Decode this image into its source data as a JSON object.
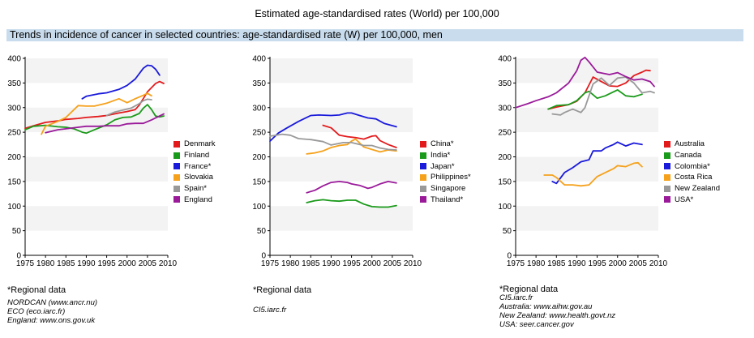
{
  "page_title": "Estimated age-standardised rates (World) per 100,000",
  "banner": "Trends in incidence of cancer in selected countries: age-standardised rate (W) per 100,000, men",
  "chart_data": [
    {
      "type": "line",
      "xlim": [
        1975,
        2010
      ],
      "ylim": [
        0,
        400
      ],
      "xticks": [
        "1975",
        "1980",
        "1985",
        "1990",
        "1995",
        "2000",
        "2005",
        "2010"
      ],
      "yticks": [
        "0",
        "50",
        "100",
        "150",
        "200",
        "250",
        "300",
        "350",
        "400"
      ],
      "grid": false,
      "legend_position": "right",
      "series": [
        {
          "name": "Denmark",
          "color": "#e31a1c",
          "x": [
            1975,
            1977,
            1980,
            1983,
            1985,
            1988,
            1990,
            1993,
            1995,
            1998,
            2000,
            2002,
            2003,
            2005,
            2007,
            2008,
            2009
          ],
          "y": [
            258,
            263,
            270,
            273,
            276,
            278,
            280,
            282,
            284,
            289,
            292,
            296,
            305,
            332,
            349,
            353,
            349
          ]
        },
        {
          "name": "Finland",
          "color": "#1a9a1a",
          "x": [
            1975,
            1977,
            1980,
            1983,
            1985,
            1987,
            1989,
            1990,
            1992,
            1995,
            1997,
            1999,
            2001,
            2003,
            2004,
            2005,
            2006,
            2007,
            2008,
            2009
          ],
          "y": [
            255,
            262,
            264,
            261,
            260,
            257,
            250,
            248,
            255,
            265,
            275,
            280,
            281,
            288,
            299,
            306,
            296,
            283,
            281,
            283
          ]
        },
        {
          "name": "France*",
          "color": "#1a1adb",
          "x": [
            1989,
            1990,
            1993,
            1995,
            1998,
            2000,
            2002,
            2004,
            2005,
            2006,
            2007,
            2008
          ],
          "y": [
            318,
            323,
            328,
            330,
            337,
            345,
            358,
            380,
            386,
            385,
            378,
            366
          ]
        },
        {
          "name": "Slovakia",
          "color": "#f5a11b",
          "x": [
            1979,
            1980,
            1983,
            1985,
            1988,
            1990,
            1992,
            1995,
            1998,
            2000,
            2002,
            2004,
            2005,
            2006
          ],
          "y": [
            246,
            262,
            272,
            280,
            304,
            303,
            303,
            309,
            318,
            310,
            318,
            325,
            329,
            324
          ]
        },
        {
          "name": "Spain*",
          "color": "#999999",
          "x": [
            1995,
            1997,
            1999,
            2001,
            2003,
            2004,
            2005,
            2006
          ],
          "y": [
            284,
            291,
            295,
            299,
            308,
            314,
            317,
            316
          ]
        },
        {
          "name": "England",
          "color": "#9a1a9a",
          "x": [
            1980,
            1983,
            1985,
            1988,
            1990,
            1993,
            1995,
            1998,
            2000,
            2002,
            2004,
            2006,
            2008,
            2009
          ],
          "y": [
            249,
            255,
            257,
            260,
            262,
            262,
            263,
            263,
            267,
            268,
            268,
            275,
            283,
            287
          ]
        }
      ]
    },
    {
      "type": "line",
      "xlim": [
        1975,
        2010
      ],
      "ylim": [
        0,
        400
      ],
      "xticks": [
        "1975",
        "1980",
        "1985",
        "1990",
        "1995",
        "2000",
        "2005",
        "2010"
      ],
      "yticks": [
        "0",
        "50",
        "100",
        "150",
        "200",
        "250",
        "300",
        "350",
        "400"
      ],
      "grid": false,
      "legend_position": "right",
      "series": [
        {
          "name": "China*",
          "color": "#e31a1c",
          "x": [
            1988,
            1990,
            1992,
            1994,
            1996,
            1998,
            2000,
            2001,
            2002,
            2004,
            2006
          ],
          "y": [
            264,
            259,
            244,
            241,
            239,
            236,
            242,
            243,
            233,
            225,
            219
          ]
        },
        {
          "name": "India*",
          "color": "#1a9a1a",
          "x": [
            1984,
            1986,
            1988,
            1990,
            1992,
            1994,
            1996,
            1998,
            2000,
            2002,
            2004,
            2006
          ],
          "y": [
            107,
            111,
            113,
            111,
            110,
            112,
            112,
            104,
            99,
            98,
            98,
            101
          ]
        },
        {
          "name": "Japan*",
          "color": "#1a1adb",
          "x": [
            1975,
            1977,
            1979,
            1982,
            1985,
            1987,
            1990,
            1992,
            1994,
            1995,
            1997,
            1999,
            2001,
            2003,
            2006
          ],
          "y": [
            232,
            248,
            258,
            272,
            284,
            285,
            284,
            285,
            289,
            289,
            284,
            279,
            277,
            268,
            261
          ]
        },
        {
          "name": "Philippines*",
          "color": "#f5a11b",
          "x": [
            1984,
            1986,
            1988,
            1990,
            1992,
            1994,
            1995,
            1996,
            1998,
            2000,
            2002,
            2004,
            2006
          ],
          "y": [
            206,
            208,
            212,
            219,
            223,
            225,
            232,
            236,
            220,
            215,
            210,
            214,
            212
          ]
        },
        {
          "name": "Singapore",
          "color": "#999999",
          "x": [
            1975,
            1978,
            1980,
            1982,
            1985,
            1988,
            1990,
            1993,
            1995,
            1998,
            2000,
            2002,
            2004,
            2006
          ],
          "y": [
            242,
            246,
            244,
            237,
            235,
            231,
            224,
            229,
            229,
            223,
            223,
            218,
            215,
            214
          ]
        },
        {
          "name": "Thailand*",
          "color": "#9a1a9a",
          "x": [
            1984,
            1986,
            1988,
            1990,
            1992,
            1994,
            1995,
            1997,
            1999,
            2000,
            2002,
            2004,
            2006
          ],
          "y": [
            127,
            132,
            141,
            148,
            150,
            148,
            145,
            142,
            136,
            138,
            145,
            150,
            147
          ]
        }
      ]
    },
    {
      "type": "line",
      "xlim": [
        1975,
        2010
      ],
      "ylim": [
        0,
        400
      ],
      "xticks": [
        "1975",
        "1980",
        "1985",
        "1990",
        "1995",
        "2000",
        "2005",
        "2010"
      ],
      "yticks": [
        "0",
        "50",
        "100",
        "150",
        "200",
        "250",
        "300",
        "350",
        "400"
      ],
      "grid": false,
      "legend_position": "right",
      "series": [
        {
          "name": "Australia",
          "color": "#e31a1c",
          "x": [
            1983,
            1985,
            1988,
            1990,
            1992,
            1994,
            1996,
            1998,
            2000,
            2002,
            2004,
            2006,
            2007,
            2008
          ],
          "y": [
            297,
            301,
            306,
            313,
            330,
            362,
            353,
            344,
            343,
            350,
            365,
            372,
            376,
            375
          ]
        },
        {
          "name": "Canada",
          "color": "#1a9a1a",
          "x": [
            1983,
            1985,
            1988,
            1990,
            1992,
            1993,
            1995,
            1997,
            1999,
            2000,
            2002,
            2004,
            2006
          ],
          "y": [
            297,
            304,
            306,
            314,
            330,
            333,
            319,
            324,
            332,
            336,
            324,
            322,
            327
          ]
        },
        {
          "name": "Colombia*",
          "color": "#1a1adb",
          "x": [
            1984,
            1985,
            1987,
            1989,
            1991,
            1993,
            1994,
            1996,
            1997,
            1999,
            2000,
            2002,
            2004,
            2006
          ],
          "y": [
            150,
            146,
            168,
            178,
            190,
            194,
            212,
            212,
            218,
            225,
            230,
            222,
            228,
            225
          ]
        },
        {
          "name": "Costa Rica",
          "color": "#f5a11b",
          "x": [
            1982,
            1984,
            1985,
            1987,
            1989,
            1991,
            1993,
            1995,
            1997,
            1999,
            2000,
            2002,
            2004,
            2005,
            2006
          ],
          "y": [
            163,
            163,
            158,
            143,
            143,
            141,
            143,
            160,
            168,
            176,
            182,
            180,
            187,
            188,
            180
          ]
        },
        {
          "name": "New Zealand",
          "color": "#999999",
          "x": [
            1984,
            1986,
            1987,
            1989,
            1991,
            1992,
            1994,
            1996,
            1998,
            2000,
            2002,
            2004,
            2006,
            2008,
            2009
          ],
          "y": [
            287,
            285,
            290,
            297,
            290,
            300,
            348,
            360,
            345,
            360,
            362,
            350,
            330,
            333,
            330
          ]
        },
        {
          "name": "USA*",
          "color": "#9a1a9a",
          "x": [
            1975,
            1978,
            1980,
            1983,
            1985,
            1988,
            1990,
            1991,
            1992,
            1993,
            1995,
            1998,
            2000,
            2002,
            2004,
            2006,
            2008,
            2009
          ],
          "y": [
            300,
            308,
            314,
            322,
            330,
            350,
            375,
            396,
            402,
            393,
            372,
            367,
            371,
            363,
            356,
            358,
            353,
            343
          ]
        }
      ]
    }
  ],
  "panels": [
    {
      "regional": "*Regional data",
      "sources": [
        "NORDCAN (www.ancr.nu)",
        "ECO (eco.iarc.fr)",
        "England: www.ons.gov.uk"
      ]
    },
    {
      "regional": "*Regional data",
      "sources": [
        "CI5.iarc.fr"
      ]
    },
    {
      "regional": "*Regional data",
      "sources": [
        "CI5.iarc.fr",
        "Australia: www.aihw.gov.au",
        "New Zealand: www.health.govt.nz",
        "USA: seer.cancer.gov"
      ]
    }
  ]
}
